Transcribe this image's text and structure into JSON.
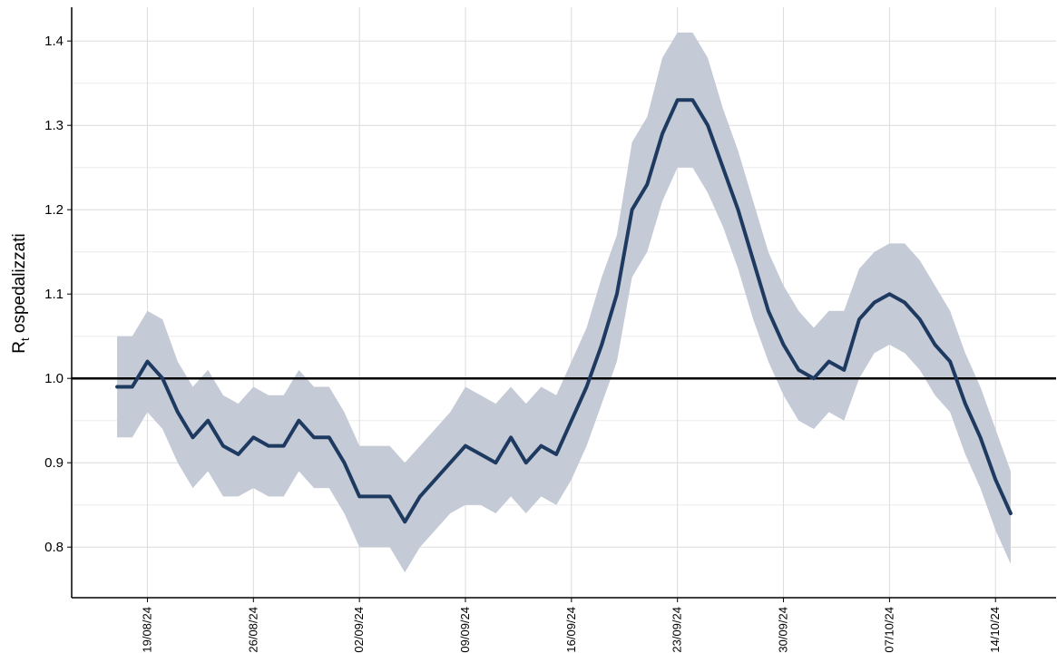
{
  "chart_data": {
    "type": "line",
    "title": "",
    "xlabel": "",
    "ylabel": "R",
    "ylabel_subscript": "t",
    "ylabel_suffix": " ospedalizzati",
    "x_tick_labels": [
      "19/08/24",
      "26/08/24",
      "02/09/24",
      "09/09/24",
      "16/09/24",
      "23/09/24",
      "30/09/24",
      "07/10/24",
      "14/10/24"
    ],
    "x_tick_dates": [
      "2024-08-19",
      "2024-08-26",
      "2024-09-02",
      "2024-09-09",
      "2024-09-16",
      "2024-09-23",
      "2024-09-30",
      "2024-10-07",
      "2024-10-14"
    ],
    "xlim": [
      "2024-08-14",
      "2024-10-18"
    ],
    "y_tick_labels": [
      "0.8",
      "0.9",
      "1.0",
      "1.1",
      "1.2",
      "1.3",
      "1.4"
    ],
    "y_ticks": [
      0.8,
      0.9,
      1.0,
      1.1,
      1.2,
      1.3,
      1.4
    ],
    "ylim": [
      0.74,
      1.44
    ],
    "reference_line": 1.0,
    "grid": true,
    "legend": "none",
    "colors": {
      "line": "#1f3a60",
      "band": "#c4cad6",
      "reference": "#000000"
    },
    "series": [
      {
        "x": [
          "2024-08-17",
          "2024-08-18",
          "2024-08-19",
          "2024-08-20",
          "2024-08-21",
          "2024-08-22",
          "2024-08-23",
          "2024-08-24",
          "2024-08-25",
          "2024-08-26",
          "2024-08-27",
          "2024-08-28",
          "2024-08-29",
          "2024-08-30",
          "2024-08-31",
          "2024-09-01",
          "2024-09-02",
          "2024-09-03",
          "2024-09-04",
          "2024-09-05",
          "2024-09-06",
          "2024-09-07",
          "2024-09-08",
          "2024-09-09",
          "2024-09-10",
          "2024-09-11",
          "2024-09-12",
          "2024-09-13",
          "2024-09-14",
          "2024-09-15",
          "2024-09-16",
          "2024-09-17",
          "2024-09-18",
          "2024-09-19",
          "2024-09-20",
          "2024-09-21",
          "2024-09-22",
          "2024-09-23",
          "2024-09-24",
          "2024-09-25",
          "2024-09-26",
          "2024-09-27",
          "2024-09-28",
          "2024-09-29",
          "2024-09-30",
          "2024-10-01",
          "2024-10-02",
          "2024-10-03",
          "2024-10-04",
          "2024-10-05",
          "2024-10-06",
          "2024-10-07",
          "2024-10-08",
          "2024-10-09",
          "2024-10-10",
          "2024-10-11",
          "2024-10-12",
          "2024-10-13",
          "2024-10-14",
          "2024-10-15"
        ],
        "y": [
          0.99,
          0.99,
          1.02,
          1.0,
          0.96,
          0.93,
          0.95,
          0.92,
          0.91,
          0.93,
          0.92,
          0.92,
          0.95,
          0.93,
          0.93,
          0.9,
          0.86,
          0.86,
          0.86,
          0.83,
          0.86,
          0.88,
          0.9,
          0.92,
          0.91,
          0.9,
          0.93,
          0.9,
          0.92,
          0.91,
          0.95,
          0.99,
          1.04,
          1.1,
          1.2,
          1.23,
          1.29,
          1.33,
          1.33,
          1.3,
          1.25,
          1.2,
          1.14,
          1.08,
          1.04,
          1.01,
          1.0,
          1.02,
          1.01,
          1.07,
          1.09,
          1.1,
          1.09,
          1.07,
          1.04,
          1.02,
          0.97,
          0.93,
          0.88,
          0.84
        ],
        "lower": [
          0.93,
          0.93,
          0.96,
          0.94,
          0.9,
          0.87,
          0.89,
          0.86,
          0.86,
          0.87,
          0.86,
          0.86,
          0.89,
          0.87,
          0.87,
          0.84,
          0.8,
          0.8,
          0.8,
          0.77,
          0.8,
          0.82,
          0.84,
          0.85,
          0.85,
          0.84,
          0.86,
          0.84,
          0.86,
          0.85,
          0.88,
          0.92,
          0.97,
          1.02,
          1.12,
          1.15,
          1.21,
          1.25,
          1.25,
          1.22,
          1.18,
          1.13,
          1.07,
          1.02,
          0.98,
          0.95,
          0.94,
          0.96,
          0.95,
          1.0,
          1.03,
          1.04,
          1.03,
          1.01,
          0.98,
          0.96,
          0.91,
          0.87,
          0.82,
          0.78
        ],
        "upper": [
          1.05,
          1.05,
          1.08,
          1.07,
          1.02,
          0.99,
          1.01,
          0.98,
          0.97,
          0.99,
          0.98,
          0.98,
          1.01,
          0.99,
          0.99,
          0.96,
          0.92,
          0.92,
          0.92,
          0.9,
          0.92,
          0.94,
          0.96,
          0.99,
          0.98,
          0.97,
          0.99,
          0.97,
          0.99,
          0.98,
          1.02,
          1.06,
          1.12,
          1.17,
          1.28,
          1.31,
          1.38,
          1.41,
          1.41,
          1.38,
          1.32,
          1.27,
          1.21,
          1.15,
          1.11,
          1.08,
          1.06,
          1.08,
          1.08,
          1.13,
          1.15,
          1.16,
          1.16,
          1.14,
          1.11,
          1.08,
          1.03,
          0.99,
          0.94,
          0.89
        ]
      }
    ]
  }
}
